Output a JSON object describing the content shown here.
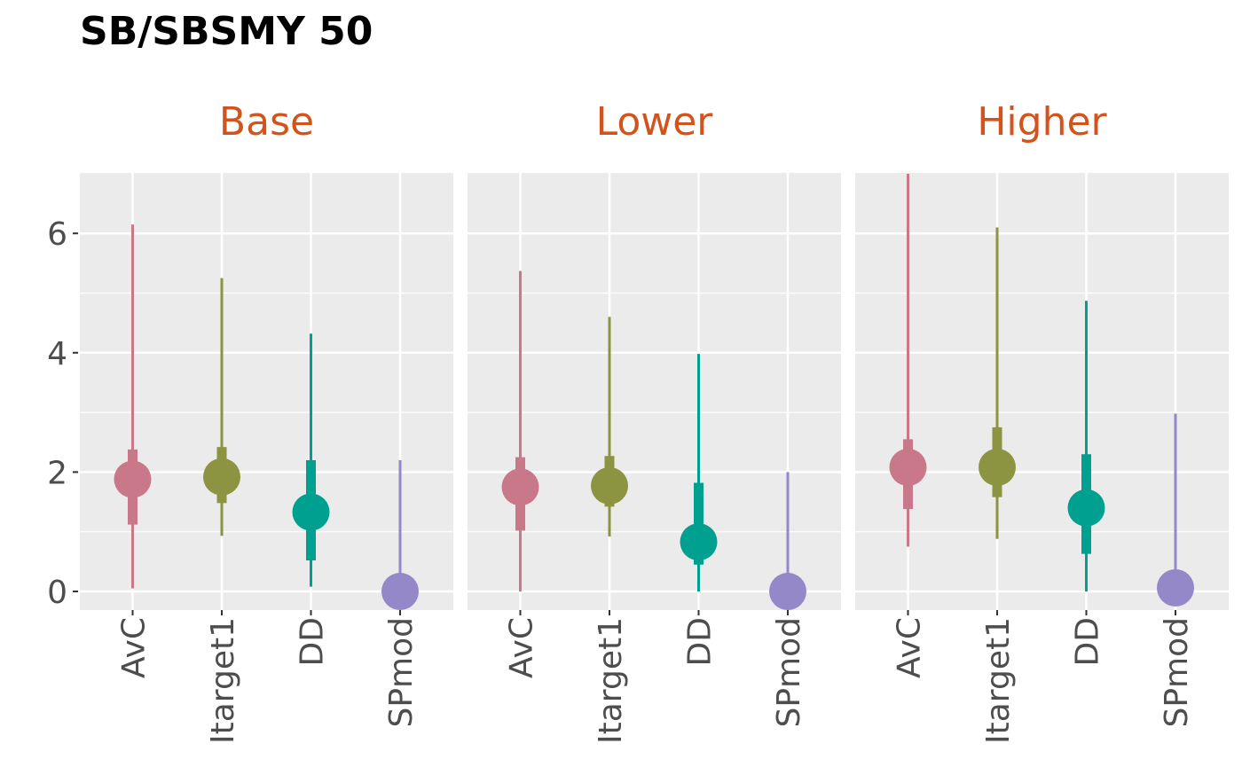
{
  "title": "SB/SBSMY 50",
  "strip_color": "#D2541C",
  "chart_data": {
    "type": "pointrange",
    "title": "SB/SBSMY 50",
    "xlabel": "",
    "ylabel": "",
    "ylim": [
      0,
      7
    ],
    "y_ticks": [
      0,
      2,
      4,
      6
    ],
    "y_tick_labels": [
      "0",
      "2",
      "4",
      "6"
    ],
    "grid": true,
    "categories": [
      "AvC",
      "Itarget1",
      "DD",
      "SPmod"
    ],
    "category_colors": [
      "#C9788A",
      "#8D9441",
      "#00A091",
      "#9588C9"
    ],
    "facets": [
      {
        "label": "Base",
        "points": [
          {
            "category": "AvC",
            "median": 1.88,
            "inner_low": 1.12,
            "inner_high": 2.38,
            "outer_low": 0.05,
            "outer_high": 6.15
          },
          {
            "category": "Itarget1",
            "median": 1.92,
            "inner_low": 1.48,
            "inner_high": 2.42,
            "outer_low": 0.93,
            "outer_high": 5.25
          },
          {
            "category": "DD",
            "median": 1.33,
            "inner_low": 0.52,
            "inner_high": 2.2,
            "outer_low": 0.08,
            "outer_high": 4.32
          },
          {
            "category": "SPmod",
            "median": 0.0,
            "inner_low": 0.0,
            "inner_high": 0.0,
            "outer_low": 0.0,
            "outer_high": 2.2
          }
        ]
      },
      {
        "label": "Lower",
        "points": [
          {
            "category": "AvC",
            "median": 1.75,
            "inner_low": 1.02,
            "inner_high": 2.25,
            "outer_low": 0.0,
            "outer_high": 5.37
          },
          {
            "category": "Itarget1",
            "median": 1.77,
            "inner_low": 1.42,
            "inner_high": 2.27,
            "outer_low": 0.92,
            "outer_high": 4.6
          },
          {
            "category": "DD",
            "median": 0.83,
            "inner_low": 0.45,
            "inner_high": 1.82,
            "outer_low": 0.0,
            "outer_high": 3.98
          },
          {
            "category": "SPmod",
            "median": 0.0,
            "inner_low": 0.0,
            "inner_high": 0.0,
            "outer_low": 0.0,
            "outer_high": 2.0
          }
        ]
      },
      {
        "label": "Higher",
        "points": [
          {
            "category": "AvC",
            "median": 2.08,
            "inner_low": 1.38,
            "inner_high": 2.55,
            "outer_low": 0.75,
            "outer_high": 7.0
          },
          {
            "category": "Itarget1",
            "median": 2.08,
            "inner_low": 1.58,
            "inner_high": 2.75,
            "outer_low": 0.88,
            "outer_high": 6.1
          },
          {
            "category": "DD",
            "median": 1.4,
            "inner_low": 0.63,
            "inner_high": 2.3,
            "outer_low": 0.0,
            "outer_high": 4.87
          },
          {
            "category": "SPmod",
            "median": 0.06,
            "inner_low": 0.0,
            "inner_high": 0.1,
            "outer_low": 0.0,
            "outer_high": 2.98
          }
        ]
      }
    ]
  }
}
